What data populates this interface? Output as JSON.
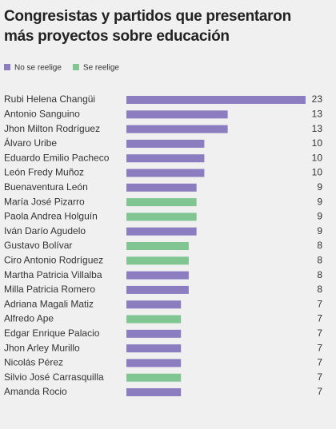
{
  "chart_data": {
    "type": "bar",
    "orientation": "horizontal",
    "title": "Congresistas y partidos que presentaron más proyectos sobre educación",
    "categories": [
      "Rubi Helena Changüi",
      "Antonio Sanguino",
      "Jhon Milton Rodríguez",
      "Álvaro Uribe",
      "Eduardo Emilio Pacheco",
      "León Fredy Muñoz",
      "Buenaventura León",
      "María José Pizarro",
      "Paola Andrea Holguín",
      "Iván Darío Agudelo",
      "Gustavo Bolívar",
      "Ciro Antonio Rodríguez",
      "Martha Patricia Villalba",
      "Milla Patricia Romero",
      "Adriana Magali Matiz",
      "Alfredo Ape",
      "Edgar Enrique Palacio",
      "Jhon Arley Murillo",
      "Nicolás Pérez",
      "Silvio José Carrasquilla",
      "Amanda Rocio"
    ],
    "series": [
      {
        "name": "No se reelige",
        "color": "#8b7dbf",
        "values": [
          23,
          13,
          13,
          10,
          10,
          10,
          9,
          null,
          null,
          9,
          null,
          null,
          8,
          8,
          7,
          null,
          7,
          7,
          7,
          null,
          7
        ]
      },
      {
        "name": "Se reelige",
        "color": "#80c592",
        "values": [
          null,
          null,
          null,
          null,
          null,
          null,
          null,
          9,
          9,
          null,
          8,
          8,
          null,
          null,
          null,
          7,
          null,
          null,
          null,
          7,
          null
        ]
      }
    ],
    "legend": "top-left"
  }
}
